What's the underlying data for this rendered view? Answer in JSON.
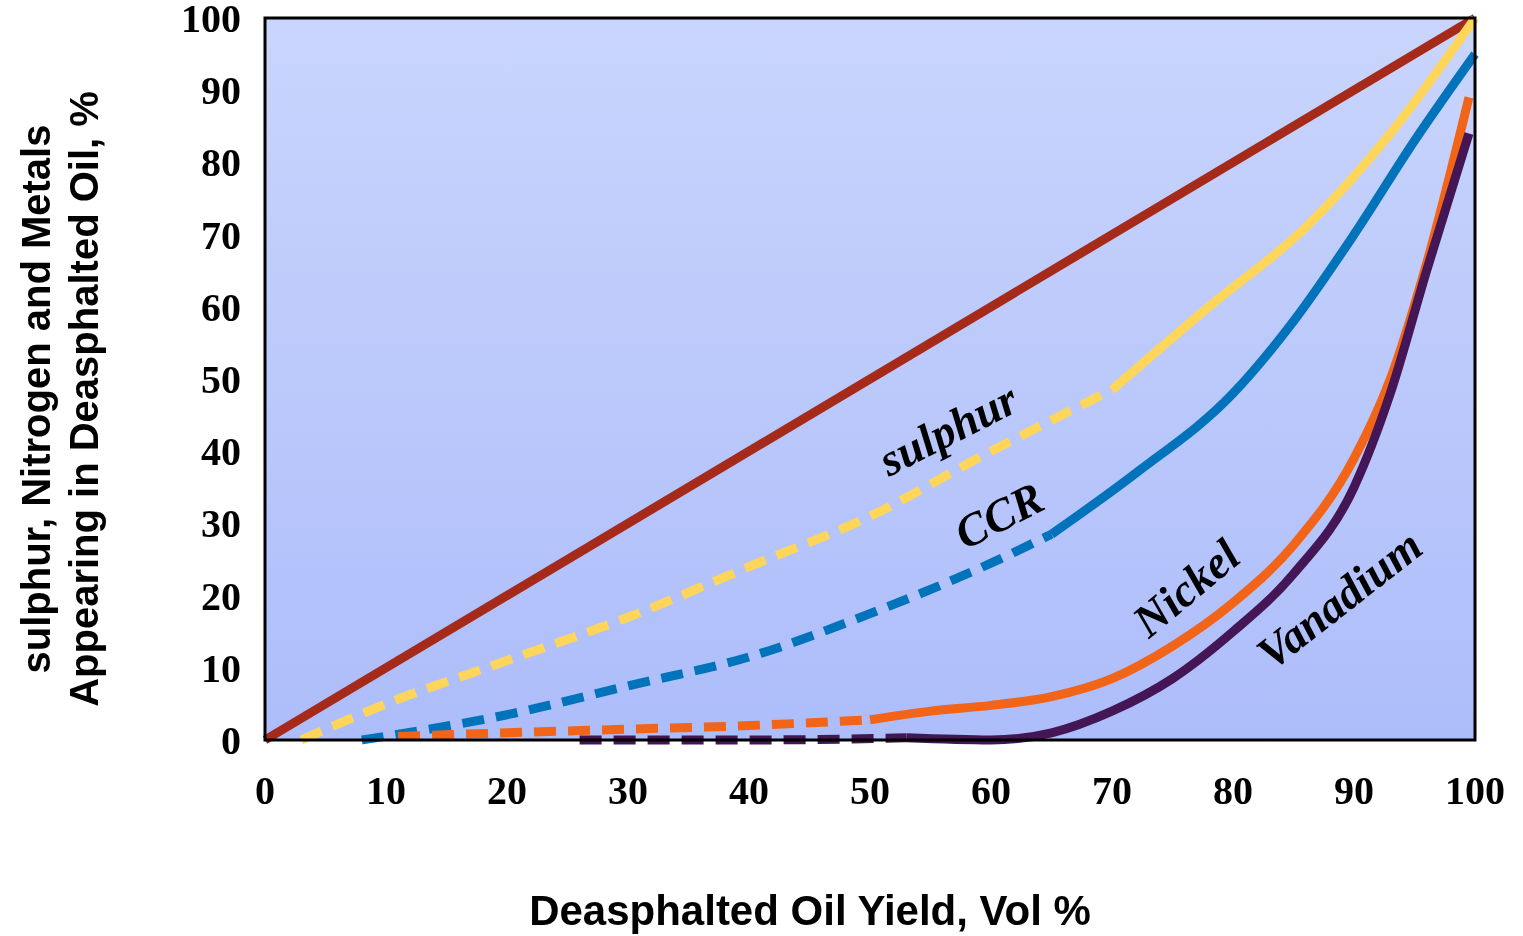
{
  "chart_data": {
    "type": "line",
    "xlabel": "Deasphalted Oil Yield, Vol %",
    "ylabel": "sulphur, Nitrogen and Metals\nAppearing in Deasphalted Oil, %",
    "xlim": [
      0,
      100
    ],
    "ylim": [
      0,
      100
    ],
    "xticks": [
      0,
      10,
      20,
      30,
      40,
      50,
      60,
      70,
      80,
      90,
      100
    ],
    "yticks": [
      0,
      10,
      20,
      30,
      40,
      50,
      60,
      70,
      80,
      90,
      100
    ],
    "marker": "none",
    "series": [
      {
        "color": "#a52a1a",
        "line_style": "solid",
        "x": [
          0,
          100
        ],
        "values": [
          0,
          100
        ]
      },
      {
        "name": "sulphur",
        "color": "#ffd55a",
        "line_style": "dashed",
        "x": [
          3,
          10,
          20,
          30,
          40,
          50,
          60,
          70
        ],
        "values": [
          0,
          5,
          11,
          17,
          24,
          31,
          40,
          48.5
        ]
      },
      {
        "color": "#ffd55a",
        "line_style": "solid",
        "x": [
          70,
          78,
          86,
          93,
          100
        ],
        "values": [
          48.5,
          60,
          71,
          84,
          100
        ]
      },
      {
        "name": "CCR",
        "color": "#0073bb",
        "line_style": "dashed",
        "x": [
          8,
          20,
          30,
          40,
          50,
          60,
          65
        ],
        "values": [
          0,
          3.5,
          7.5,
          11.5,
          17.5,
          24.5,
          28.5
        ]
      },
      {
        "color": "#0073bb",
        "line_style": "solid",
        "x": [
          65,
          72,
          80,
          85,
          90,
          95,
          100
        ],
        "values": [
          28.5,
          37,
          48,
          58,
          70,
          83,
          95
        ]
      },
      {
        "color": "#f26418",
        "line_style": "dashed",
        "x": [
          11,
          20,
          30,
          40,
          50
        ],
        "values": [
          0.5,
          1,
          1.5,
          2,
          2.8
        ]
      },
      {
        "name": "Nickel",
        "color": "#f26418",
        "line_style": "solid",
        "x": [
          50,
          55,
          60,
          65,
          70,
          75,
          80,
          85,
          90,
          93,
          96,
          99.5
        ],
        "values": [
          2.8,
          4,
          4.8,
          6,
          8.5,
          13,
          19,
          27,
          39,
          50,
          66,
          89
        ]
      },
      {
        "color": "#441655",
        "line_style": "dashed",
        "x": [
          26,
          40,
          53
        ],
        "values": [
          0,
          0,
          0.3
        ]
      },
      {
        "name": "Vanadium",
        "color": "#441655",
        "line_style": "solid",
        "x": [
          53,
          60,
          65,
          70,
          75,
          80,
          85,
          90,
          93,
          96,
          99.5
        ],
        "values": [
          0.3,
          0,
          1,
          4,
          8.5,
          15,
          23,
          35,
          48,
          65,
          84
        ]
      }
    ]
  }
}
